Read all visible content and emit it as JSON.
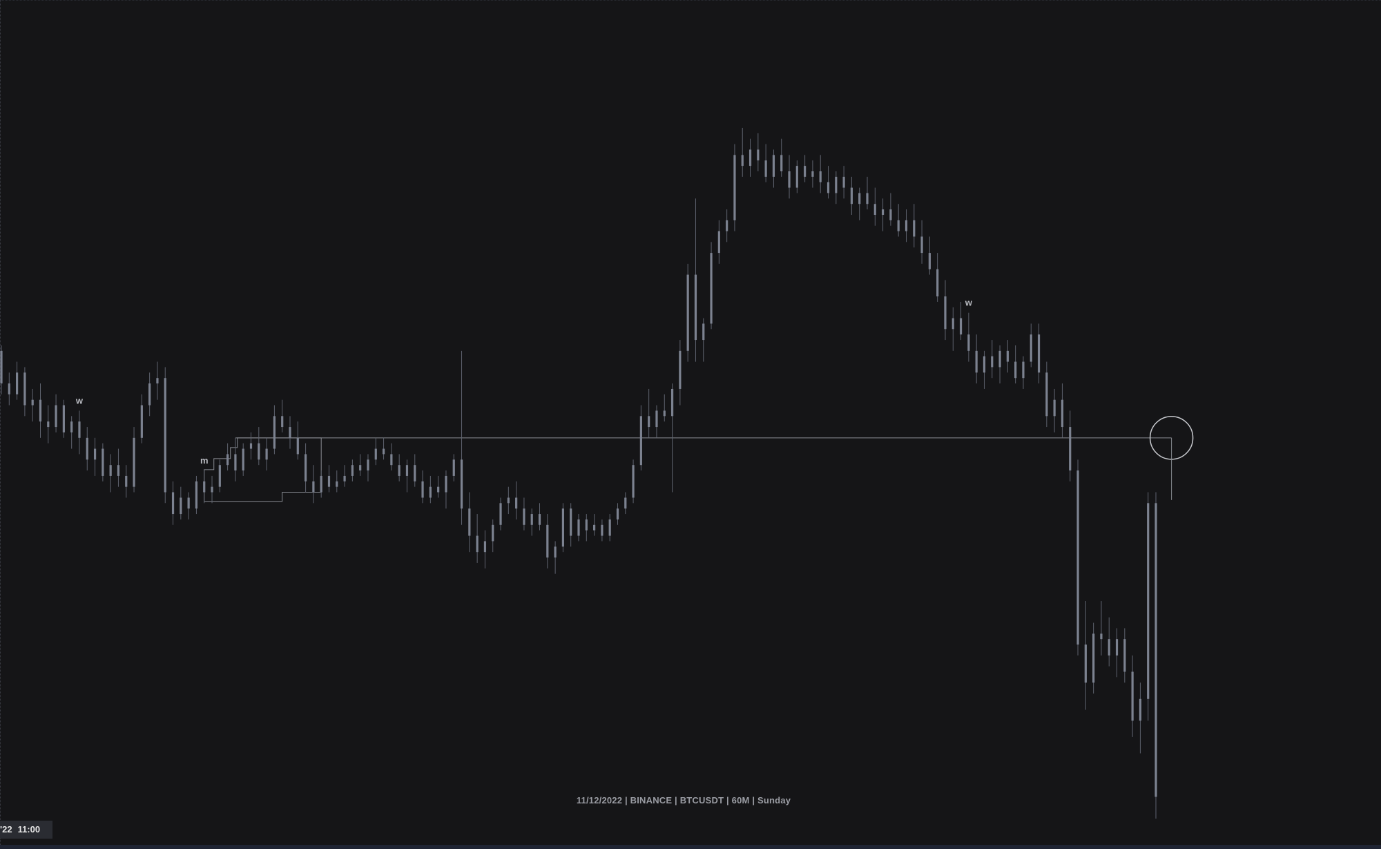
{
  "watermark": {
    "text": "11/12/2022 | BINANCE | BTCUSDT | 60M | Sunday"
  },
  "time_badge": {
    "date_fragment": "'22",
    "time": "11:00"
  },
  "colors": {
    "background": "#151517",
    "candle": "#7c8290",
    "candle_wick": "#5f6470",
    "annotation": "#8a8d94",
    "label": "#b8bac0"
  },
  "chart_data": {
    "type": "candlestick",
    "symbol": "BTCUSDT",
    "exchange": "BINANCE",
    "timeframe": "60M",
    "date": "11/12/2022",
    "day": "Sunday",
    "y_axis_visible": false,
    "x_axis_visible": false,
    "grid": false,
    "price_range_index": [
      0,
      100
    ],
    "candles": [
      [
        86,
        87,
        78,
        80
      ],
      [
        80,
        82,
        76,
        78
      ],
      [
        78,
        84,
        77,
        82
      ],
      [
        82,
        83,
        74,
        76
      ],
      [
        76,
        79,
        73,
        77
      ],
      [
        77,
        80,
        70,
        73
      ],
      [
        73,
        76,
        69,
        72
      ],
      [
        72,
        78,
        71,
        76
      ],
      [
        76,
        77,
        70,
        71
      ],
      [
        71,
        74,
        68,
        73
      ],
      [
        73,
        75,
        67,
        70
      ],
      [
        70,
        72,
        64,
        66
      ],
      [
        66,
        70,
        63,
        68
      ],
      [
        68,
        69,
        62,
        63
      ],
      [
        63,
        67,
        60,
        65
      ],
      [
        65,
        68,
        61,
        63
      ],
      [
        63,
        65,
        59,
        61
      ],
      [
        61,
        72,
        60,
        70
      ],
      [
        70,
        78,
        69,
        76
      ],
      [
        76,
        82,
        74,
        80
      ],
      [
        80,
        84,
        77,
        81
      ],
      [
        81,
        83,
        58,
        60
      ],
      [
        60,
        62,
        54,
        56
      ],
      [
        56,
        61,
        55,
        59
      ],
      [
        59,
        60,
        55,
        57
      ],
      [
        57,
        63,
        56,
        62
      ],
      [
        62,
        64,
        58,
        60
      ],
      [
        60,
        63,
        58,
        61
      ],
      [
        61,
        66,
        60,
        65
      ],
      [
        65,
        69,
        64,
        67
      ],
      [
        67,
        70,
        62,
        64
      ],
      [
        64,
        69,
        63,
        68
      ],
      [
        68,
        71,
        66,
        69
      ],
      [
        69,
        72,
        65,
        66
      ],
      [
        66,
        70,
        64,
        68
      ],
      [
        68,
        76,
        67,
        74
      ],
      [
        74,
        77,
        71,
        72
      ],
      [
        72,
        74,
        68,
        70
      ],
      [
        70,
        73,
        66,
        67
      ],
      [
        67,
        69,
        60,
        62
      ],
      [
        62,
        65,
        58,
        60
      ],
      [
        60,
        64,
        59,
        63
      ],
      [
        63,
        65,
        60,
        61
      ],
      [
        61,
        64,
        60,
        62
      ],
      [
        62,
        65,
        61,
        63
      ],
      [
        63,
        66,
        62,
        65
      ],
      [
        65,
        67,
        63,
        64
      ],
      [
        64,
        67,
        62,
        66
      ],
      [
        66,
        70,
        65,
        68
      ],
      [
        68,
        70,
        66,
        67
      ],
      [
        67,
        69,
        64,
        65
      ],
      [
        65,
        67,
        62,
        63
      ],
      [
        63,
        66,
        60,
        65
      ],
      [
        65,
        67,
        61,
        62
      ],
      [
        62,
        64,
        58,
        59
      ],
      [
        59,
        63,
        58,
        61
      ],
      [
        61,
        63,
        59,
        60
      ],
      [
        60,
        64,
        57,
        63
      ],
      [
        63,
        67,
        62,
        66
      ],
      [
        66,
        86,
        54,
        57
      ],
      [
        57,
        60,
        49,
        52
      ],
      [
        52,
        56,
        47,
        49
      ],
      [
        49,
        53,
        46,
        51
      ],
      [
        51,
        55,
        49,
        54
      ],
      [
        54,
        59,
        53,
        58
      ],
      [
        58,
        61,
        56,
        59
      ],
      [
        59,
        62,
        55,
        57
      ],
      [
        57,
        59,
        53,
        54
      ],
      [
        54,
        57,
        52,
        56
      ],
      [
        56,
        58,
        53,
        54
      ],
      [
        54,
        56,
        46,
        48
      ],
      [
        48,
        51,
        45,
        50
      ],
      [
        50,
        58,
        49,
        57
      ],
      [
        57,
        58,
        50,
        52
      ],
      [
        52,
        56,
        51,
        55
      ],
      [
        55,
        56,
        51,
        53
      ],
      [
        53,
        56,
        52,
        54
      ],
      [
        54,
        55,
        51,
        52
      ],
      [
        52,
        56,
        51,
        55
      ],
      [
        55,
        58,
        54,
        57
      ],
      [
        57,
        60,
        56,
        59
      ],
      [
        59,
        66,
        58,
        65
      ],
      [
        65,
        76,
        64,
        74
      ],
      [
        74,
        79,
        70,
        72
      ],
      [
        72,
        76,
        70,
        75
      ],
      [
        75,
        78,
        73,
        74
      ],
      [
        74,
        80,
        60,
        79
      ],
      [
        79,
        88,
        76,
        86
      ],
      [
        86,
        102,
        84,
        100
      ],
      [
        100,
        114,
        84,
        88
      ],
      [
        88,
        92,
        84,
        91
      ],
      [
        91,
        106,
        90,
        104
      ],
      [
        104,
        110,
        102,
        108
      ],
      [
        108,
        112,
        106,
        110
      ],
      [
        110,
        124,
        108,
        122
      ],
      [
        122,
        127,
        118,
        120
      ],
      [
        120,
        125,
        118,
        123
      ],
      [
        123,
        126,
        119,
        121
      ],
      [
        121,
        124,
        117,
        118
      ],
      [
        118,
        123,
        116,
        122
      ],
      [
        122,
        125,
        118,
        119
      ],
      [
        119,
        122,
        114,
        116
      ],
      [
        116,
        121,
        115,
        120
      ],
      [
        120,
        122,
        117,
        118
      ],
      [
        118,
        121,
        116,
        119
      ],
      [
        119,
        122,
        115,
        117
      ],
      [
        117,
        120,
        114,
        115
      ],
      [
        115,
        119,
        113,
        118
      ],
      [
        118,
        120,
        114,
        116
      ],
      [
        116,
        118,
        111,
        113
      ],
      [
        113,
        116,
        110,
        115
      ],
      [
        115,
        118,
        112,
        113
      ],
      [
        113,
        116,
        109,
        111
      ],
      [
        111,
        114,
        108,
        112
      ],
      [
        112,
        115,
        109,
        110
      ],
      [
        110,
        113,
        107,
        108
      ],
      [
        108,
        112,
        106,
        110
      ],
      [
        110,
        113,
        105,
        107
      ],
      [
        107,
        110,
        102,
        104
      ],
      [
        104,
        107,
        100,
        101
      ],
      [
        101,
        104,
        95,
        96
      ],
      [
        96,
        99,
        88,
        90
      ],
      [
        90,
        94,
        86,
        92
      ],
      [
        92,
        95,
        88,
        89
      ],
      [
        89,
        93,
        84,
        86
      ],
      [
        86,
        89,
        80,
        82
      ],
      [
        82,
        86,
        79,
        85
      ],
      [
        85,
        88,
        81,
        83
      ],
      [
        83,
        87,
        80,
        86
      ],
      [
        86,
        88,
        82,
        84
      ],
      [
        84,
        87,
        80,
        81
      ],
      [
        81,
        85,
        79,
        84
      ],
      [
        84,
        91,
        83,
        89
      ],
      [
        89,
        91,
        80,
        82
      ],
      [
        82,
        84,
        72,
        74
      ],
      [
        74,
        79,
        71,
        77
      ],
      [
        77,
        80,
        70,
        72
      ],
      [
        72,
        75,
        62,
        64
      ],
      [
        64,
        66,
        30,
        32
      ],
      [
        32,
        40,
        20,
        25
      ],
      [
        25,
        36,
        23,
        34
      ],
      [
        34,
        40,
        30,
        33
      ],
      [
        33,
        37,
        28,
        30
      ],
      [
        30,
        35,
        26,
        33
      ],
      [
        33,
        35,
        25,
        27
      ],
      [
        27,
        30,
        15,
        18
      ],
      [
        18,
        25,
        12,
        22
      ],
      [
        22,
        60,
        18,
        58
      ],
      [
        58,
        60,
        0,
        4
      ]
    ],
    "annotations": [
      {
        "type": "text",
        "label": "w",
        "candle_index": 10
      },
      {
        "type": "text",
        "label": "m",
        "candle_index": 26
      },
      {
        "type": "text",
        "label": "w",
        "candle_index": 124
      },
      {
        "type": "horizontal_level",
        "from_candle_index": 30,
        "to_candle_index": 150
      },
      {
        "type": "circle_marker",
        "candle_index": 150
      },
      {
        "type": "box_zone",
        "from_candle_index": 26,
        "to_candle_index": 41
      }
    ]
  }
}
